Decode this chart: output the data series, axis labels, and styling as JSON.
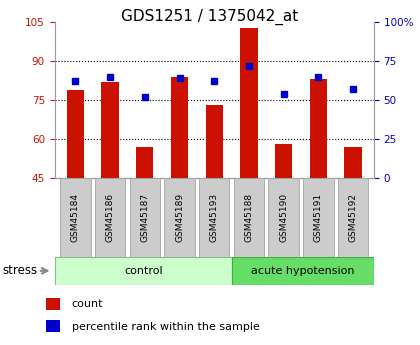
{
  "title": "GDS1251 / 1375042_at",
  "samples": [
    "GSM45184",
    "GSM45186",
    "GSM45187",
    "GSM45189",
    "GSM45193",
    "GSM45188",
    "GSM45190",
    "GSM45191",
    "GSM45192"
  ],
  "counts": [
    79,
    82,
    57,
    84,
    73,
    103,
    58,
    83,
    57
  ],
  "percentiles": [
    62,
    65,
    52,
    64,
    62,
    72,
    54,
    65,
    57
  ],
  "control_count": 5,
  "ylim_left": [
    45,
    105
  ],
  "yticks_left": [
    45,
    60,
    75,
    90,
    105
  ],
  "ylim_right": [
    0,
    100
  ],
  "yticks_right": [
    0,
    25,
    50,
    75,
    100
  ],
  "bar_color": "#cc1100",
  "dot_color": "#0000cc",
  "bar_width": 0.5,
  "grid_lines": [
    60,
    75,
    90
  ],
  "stress_label": "stress",
  "legend_count": "count",
  "legend_percentile": "percentile rank within the sample",
  "title_fontsize": 11,
  "tick_fontsize": 7.5,
  "left_tick_color": "#cc1100",
  "right_tick_color": "#0000cc",
  "control_color": "#ccffcc",
  "acute_color": "#66dd66",
  "box_color": "#cccccc",
  "box_edge_color": "#999999"
}
